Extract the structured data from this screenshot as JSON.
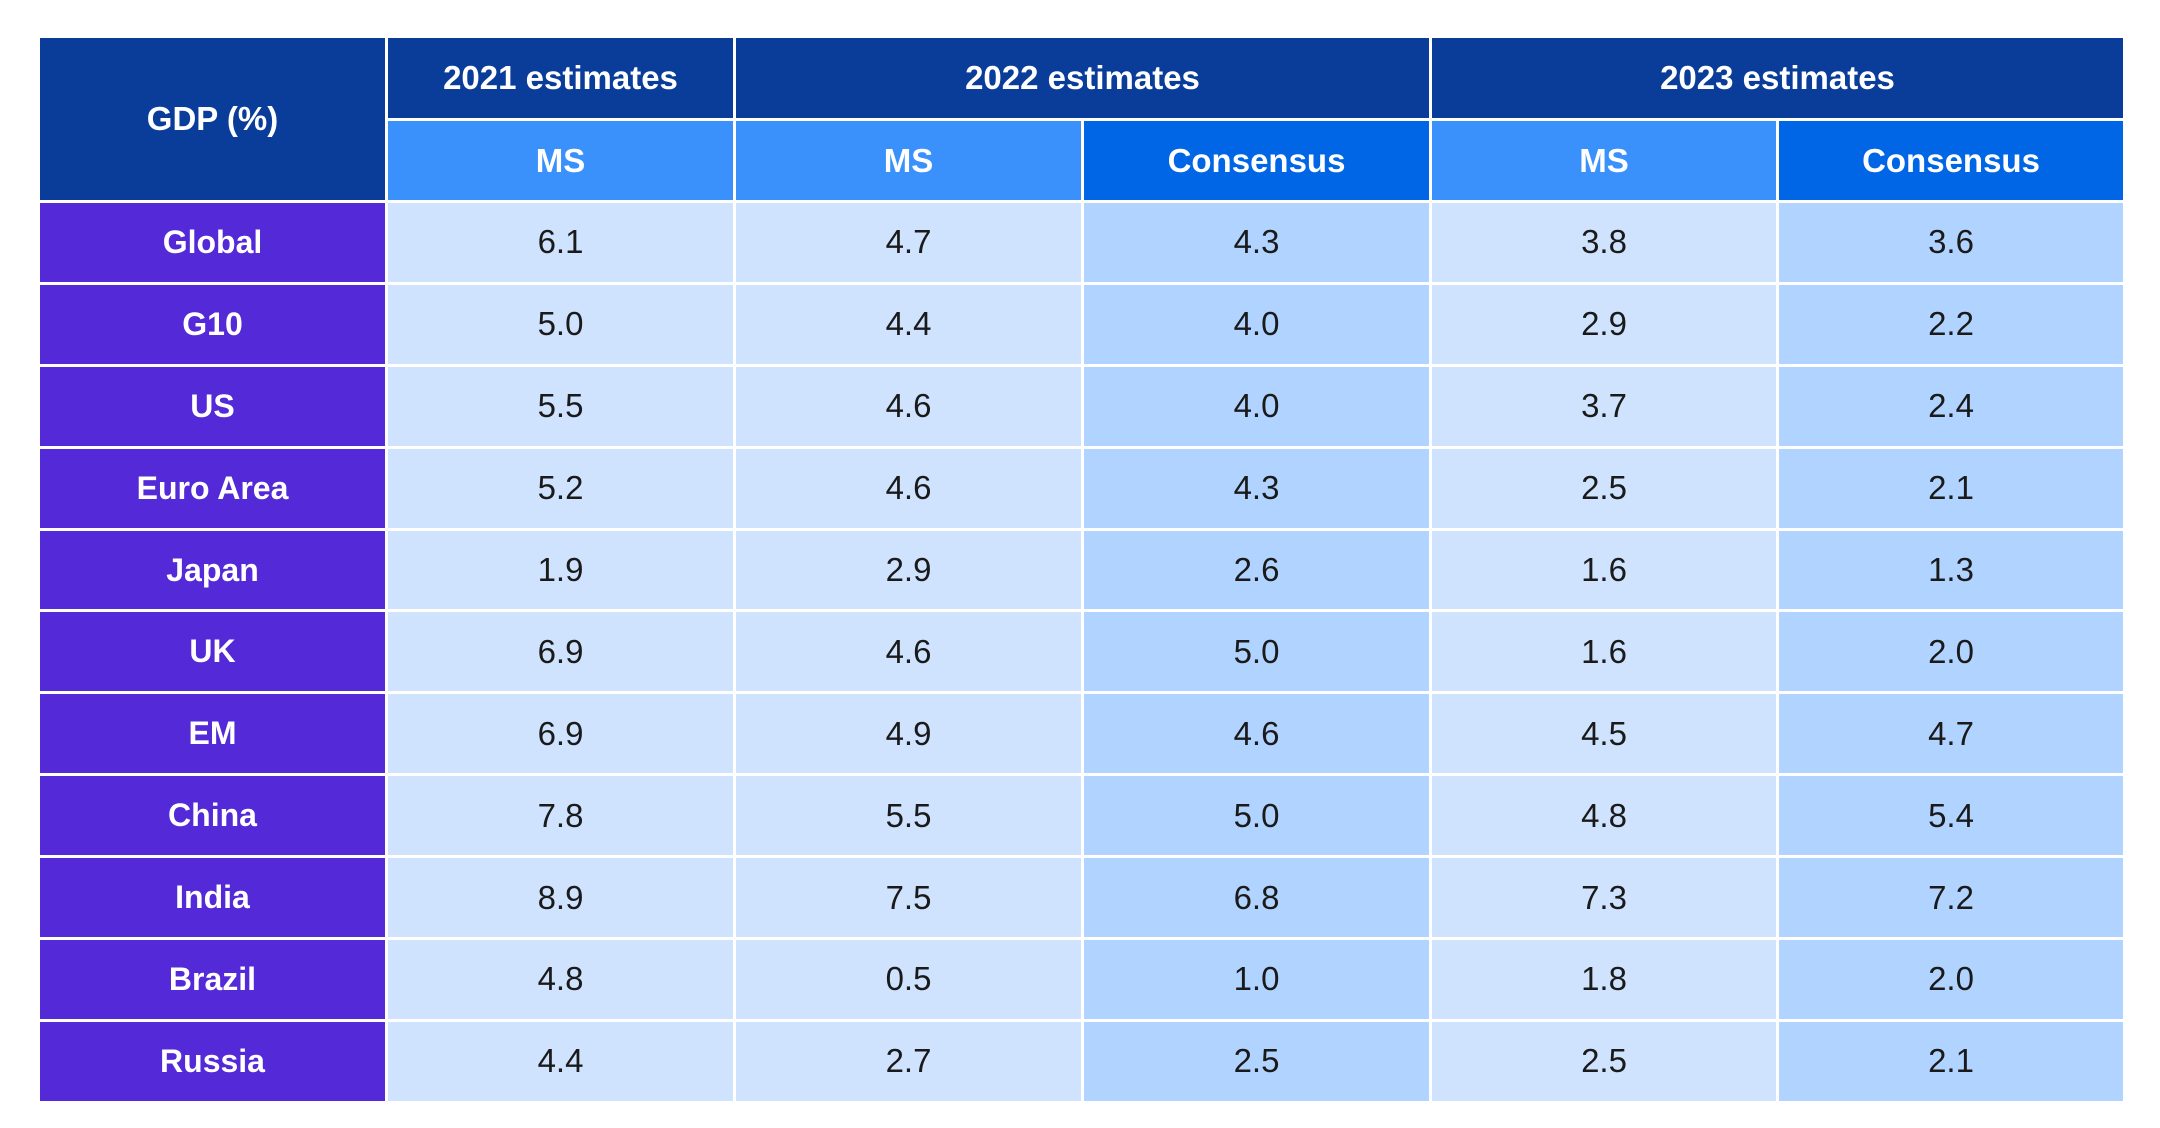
{
  "table": {
    "corner_label": "GDP (%)",
    "year_headers": [
      "2021 estimates",
      "2022 estimates",
      "2023 estimates"
    ],
    "sub_headers": [
      "MS",
      "MS",
      "Consensus",
      "MS",
      "Consensus"
    ]
  },
  "colors": {
    "year_header_bg": "#0a3d9a",
    "ms_header_bg": "#3b91fb",
    "consensus_header_bg": "#0066e6",
    "row_label_bg": "#5329d8",
    "ms_cell_bg": "#cfe3ff",
    "consensus_cell_bg": "#b1d3ff"
  },
  "chart_data": {
    "type": "table",
    "row_header": "GDP (%)",
    "column_groups": [
      {
        "label": "2021 estimates",
        "columns": [
          "MS"
        ]
      },
      {
        "label": "2022 estimates",
        "columns": [
          "MS",
          "Consensus"
        ]
      },
      {
        "label": "2023 estimates",
        "columns": [
          "MS",
          "Consensus"
        ]
      }
    ],
    "rows": [
      {
        "label": "Global",
        "values": [
          "6.1",
          "4.7",
          "4.3",
          "3.8",
          "3.6"
        ]
      },
      {
        "label": "G10",
        "values": [
          "5.0",
          "4.4",
          "4.0",
          "2.9",
          "2.2"
        ]
      },
      {
        "label": "US",
        "values": [
          "5.5",
          "4.6",
          "4.0",
          "3.7",
          "2.4"
        ]
      },
      {
        "label": "Euro Area",
        "values": [
          "5.2",
          "4.6",
          "4.3",
          "2.5",
          "2.1"
        ]
      },
      {
        "label": "Japan",
        "values": [
          "1.9",
          "2.9",
          "2.6",
          "1.6",
          "1.3"
        ]
      },
      {
        "label": "UK",
        "values": [
          "6.9",
          "4.6",
          "5.0",
          "1.6",
          "2.0"
        ]
      },
      {
        "label": "EM",
        "values": [
          "6.9",
          "4.9",
          "4.6",
          "4.5",
          "4.7"
        ]
      },
      {
        "label": "China",
        "values": [
          "7.8",
          "5.5",
          "5.0",
          "4.8",
          "5.4"
        ]
      },
      {
        "label": "India",
        "values": [
          "8.9",
          "7.5",
          "6.8",
          "7.3",
          "7.2"
        ]
      },
      {
        "label": "Brazil",
        "values": [
          "4.8",
          "0.5",
          "1.0",
          "1.8",
          "2.0"
        ]
      },
      {
        "label": "Russia",
        "values": [
          "4.4",
          "2.7",
          "2.5",
          "2.5",
          "2.1"
        ]
      }
    ]
  }
}
